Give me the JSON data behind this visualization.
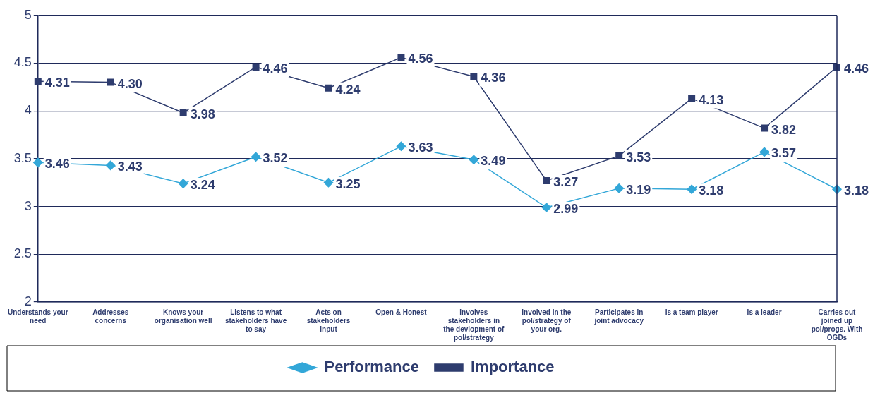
{
  "chart_data": {
    "type": "line",
    "categories": [
      "Understands your need",
      "Addresses concerns",
      "Knows your organisation well",
      "Listens to what stakeholders have to say",
      "Acts on stakeholders input",
      "Open & Honest",
      "Involves stakeholders in the devlopment of pol/strategy",
      "Involved in the pol/strategy of your org.",
      "Participates in joint advocacy",
      "Is a team player",
      "Is a leader",
      "Carries out joined up pol/progs. With OGDs"
    ],
    "series": [
      {
        "name": "Performance",
        "color": "#33a7d8",
        "marker": "diamond",
        "values": [
          3.46,
          3.43,
          3.24,
          3.52,
          3.25,
          3.63,
          3.49,
          2.99,
          3.19,
          3.18,
          3.57,
          3.18
        ],
        "value_labels": [
          "3.46",
          "3.43",
          "3.24",
          "3.52",
          "3.25",
          "3.63",
          "3.49",
          "2.99",
          "3.19",
          "3.18",
          "3.57",
          "3.18"
        ]
      },
      {
        "name": "Importance",
        "color": "#2e3c6e",
        "marker": "square",
        "values": [
          4.31,
          4.3,
          3.98,
          4.46,
          4.24,
          4.56,
          4.36,
          3.27,
          3.53,
          4.13,
          3.82,
          4.46
        ],
        "value_labels": [
          "4.31",
          "4.30",
          "3.98",
          "4.46",
          "4.24",
          "4.56",
          "4.36",
          "3.27",
          "3.53",
          "4.13",
          "3.82",
          "4.46"
        ]
      }
    ],
    "ylim": [
      2,
      5
    ],
    "yticks": [
      2,
      2.5,
      3,
      3.5,
      4,
      4.5,
      5
    ],
    "grid": "y",
    "legend": "bottom",
    "line_style": "solid"
  }
}
